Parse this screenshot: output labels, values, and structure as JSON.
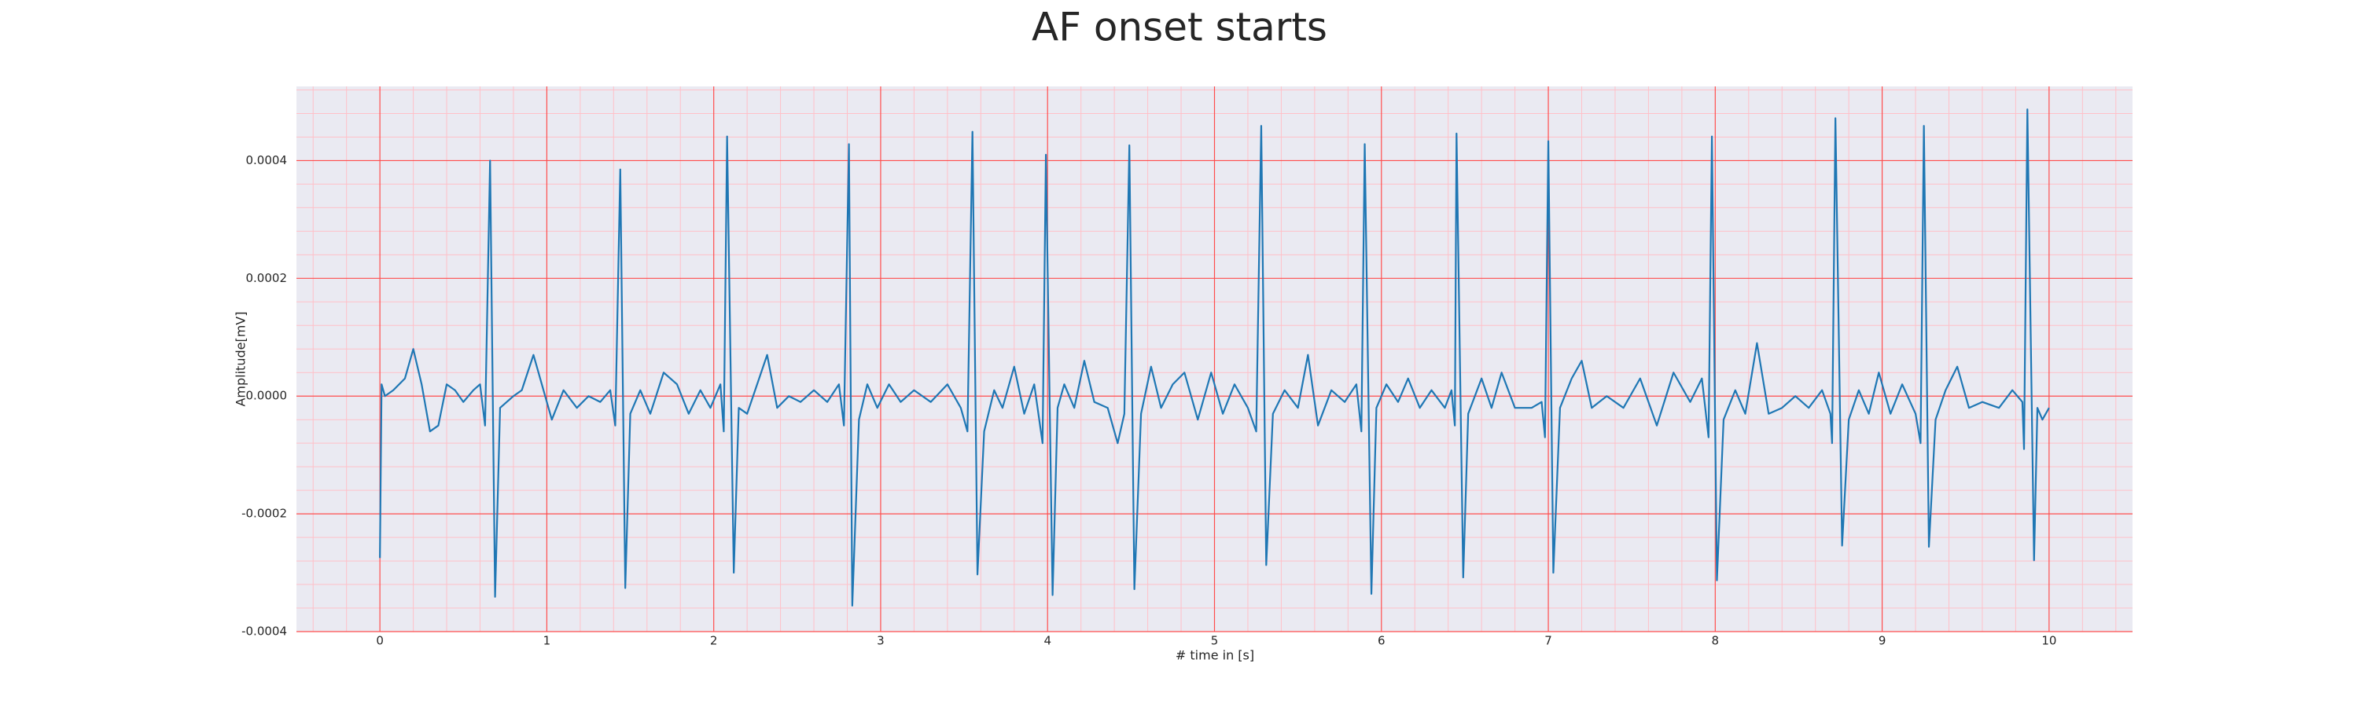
{
  "chart_data": {
    "type": "line",
    "title": "AF onset starts",
    "xlabel": "# time in [s]",
    "ylabel": "Amplitude[mV]",
    "color": "#1f77b4",
    "background": "#eaeaf2",
    "grid_color": "#ff4d4d",
    "minor_grid_color": "#ffc0c8",
    "grid": true,
    "minor_grid": true,
    "xlim": [
      -0.5,
      10.5
    ],
    "ylim": [
      -0.0004,
      0.000526
    ],
    "xticks": [
      0,
      1,
      2,
      3,
      4,
      5,
      6,
      7,
      8,
      9,
      10
    ],
    "yticks": [
      {
        "value": -0.0004,
        "label": "-0.0004"
      },
      {
        "value": -0.0002,
        "label": "-0.0002"
      },
      {
        "value": 0,
        "label": "0.0000"
      },
      {
        "value": 0.0002,
        "label": "0.0002"
      },
      {
        "value": 0.0004,
        "label": "0.0004"
      }
    ],
    "x": [
      0,
      0.01,
      0.03,
      0.08,
      0.15,
      0.2,
      0.25,
      0.3,
      0.35,
      0.4,
      0.45,
      0.5,
      0.56,
      0.6,
      0.63,
      0.66,
      0.69,
      0.72,
      0.76,
      0.8,
      0.85,
      0.92,
      0.98,
      1.03,
      1.1,
      1.18,
      1.25,
      1.32,
      1.38,
      1.41,
      1.44,
      1.47,
      1.5,
      1.56,
      1.62,
      1.7,
      1.78,
      1.85,
      1.92,
      1.98,
      2.04,
      2.06,
      2.08,
      2.12,
      2.15,
      2.2,
      2.26,
      2.32,
      2.38,
      2.45,
      2.52,
      2.6,
      2.68,
      2.75,
      2.78,
      2.81,
      2.83,
      2.87,
      2.92,
      2.98,
      3.05,
      3.12,
      3.2,
      3.3,
      3.4,
      3.48,
      3.52,
      3.55,
      3.58,
      3.62,
      3.68,
      3.73,
      3.8,
      3.86,
      3.92,
      3.97,
      3.99,
      4.03,
      4.06,
      4.1,
      4.16,
      4.22,
      4.28,
      4.36,
      4.42,
      4.46,
      4.49,
      4.52,
      4.56,
      4.62,
      4.68,
      4.75,
      4.82,
      4.9,
      4.98,
      5.05,
      5.12,
      5.2,
      5.25,
      5.28,
      5.31,
      5.35,
      5.42,
      5.5,
      5.56,
      5.62,
      5.7,
      5.78,
      5.85,
      5.88,
      5.9,
      5.94,
      5.97,
      6.03,
      6.1,
      6.16,
      6.23,
      6.3,
      6.38,
      6.42,
      6.44,
      6.45,
      6.49,
      6.52,
      6.6,
      6.66,
      6.72,
      6.8,
      6.9,
      6.96,
      6.98,
      7.0,
      7.03,
      7.07,
      7.14,
      7.2,
      7.26,
      7.35,
      7.45,
      7.55,
      7.65,
      7.75,
      7.85,
      7.92,
      7.96,
      7.98,
      8.01,
      8.05,
      8.12,
      8.18,
      8.25,
      8.32,
      8.4,
      8.48,
      8.56,
      8.64,
      8.69,
      8.7,
      8.72,
      8.76,
      8.8,
      8.86,
      8.92,
      8.98,
      9.05,
      9.12,
      9.2,
      9.23,
      9.25,
      9.28,
      9.32,
      9.38,
      9.45,
      9.52,
      9.6,
      9.7,
      9.78,
      9.84,
      9.85,
      9.87,
      9.91,
      9.93,
      9.96,
      10.0
    ],
    "values": [
      -0.000275,
      2e-05,
      0,
      1e-05,
      3e-05,
      8e-05,
      2e-05,
      -6e-05,
      -5e-05,
      2e-05,
      1e-05,
      -1e-05,
      1e-05,
      2e-05,
      -5e-05,
      0.0004,
      -0.000341,
      -2e-05,
      -1e-05,
      0,
      1e-05,
      7e-05,
      1e-05,
      -4e-05,
      1e-05,
      -2e-05,
      0,
      -1e-05,
      1e-05,
      -5e-05,
      0.000385,
      -0.000326,
      -3e-05,
      1e-05,
      -3e-05,
      4e-05,
      2e-05,
      -3e-05,
      1e-05,
      -2e-05,
      2e-05,
      -6e-05,
      0.000441,
      -0.0003,
      -2e-05,
      -3e-05,
      2e-05,
      7e-05,
      -2e-05,
      0,
      -1e-05,
      1e-05,
      -1e-05,
      2e-05,
      -5e-05,
      0.000428,
      -0.000356,
      -4e-05,
      2e-05,
      -2e-05,
      2e-05,
      -1e-05,
      1e-05,
      -1e-05,
      2e-05,
      -2e-05,
      -6e-05,
      0.000449,
      -0.000303,
      -6e-05,
      1e-05,
      -2e-05,
      5e-05,
      -3e-05,
      2e-05,
      -8e-05,
      0.00041,
      -0.000338,
      -2e-05,
      2e-05,
      -2e-05,
      6e-05,
      -1e-05,
      -2e-05,
      -8e-05,
      -3e-05,
      0.000426,
      -0.000328,
      -3e-05,
      5e-05,
      -2e-05,
      2e-05,
      4e-05,
      -4e-05,
      4e-05,
      -3e-05,
      2e-05,
      -2e-05,
      -6e-05,
      0.000459,
      -0.000287,
      -3e-05,
      1e-05,
      -2e-05,
      7e-05,
      -5e-05,
      1e-05,
      -1e-05,
      2e-05,
      -6e-05,
      0.000428,
      -0.000336,
      -2e-05,
      2e-05,
      -1e-05,
      3e-05,
      -2e-05,
      1e-05,
      -2e-05,
      1e-05,
      -5e-05,
      0.000446,
      -0.000308,
      -3e-05,
      3e-05,
      -2e-05,
      4e-05,
      -2e-05,
      -2e-05,
      -1e-05,
      -7e-05,
      0.000433,
      -0.0003,
      -2e-05,
      3e-05,
      6e-05,
      -2e-05,
      0,
      -2e-05,
      3e-05,
      -5e-05,
      4e-05,
      -1e-05,
      3e-05,
      -7e-05,
      0.000441,
      -0.000313,
      -4e-05,
      1e-05,
      -3e-05,
      9e-05,
      -3e-05,
      -2e-05,
      0,
      -2e-05,
      1e-05,
      -3e-05,
      -8e-05,
      0.000472,
      -0.000254,
      -4e-05,
      1e-05,
      -3e-05,
      4e-05,
      -3e-05,
      2e-05,
      -3e-05,
      -8e-05,
      0.000459,
      -0.000256,
      -4e-05,
      1e-05,
      5e-05,
      -2e-05,
      -1e-05,
      -2e-05,
      1e-05,
      -1e-05,
      -9e-05,
      0.000487,
      -0.000279,
      -2e-05,
      -4e-05,
      -2e-05
    ]
  }
}
